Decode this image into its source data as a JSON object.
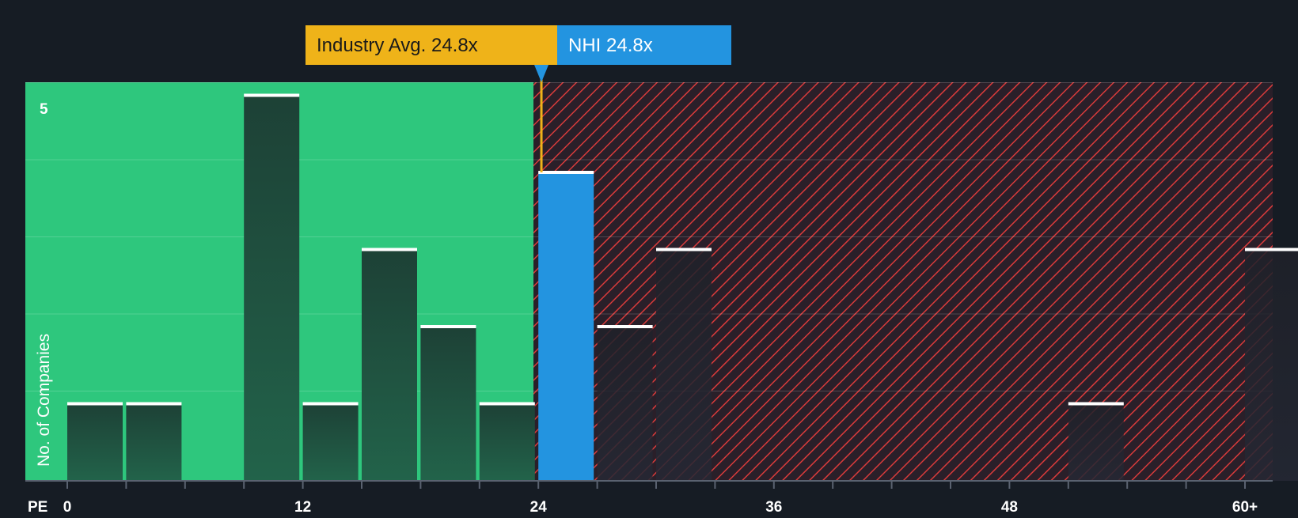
{
  "chart_data": {
    "type": "bar",
    "x_axis_label": "PE",
    "y_axis_label": "No. of Companies",
    "x_ticks": [
      "0",
      "12",
      "24",
      "36",
      "48",
      "60+"
    ],
    "y_ticks": [
      "5"
    ],
    "ylim": [
      0,
      5
    ],
    "bins": [
      {
        "x_start": 0,
        "x_end": 3,
        "count": 1
      },
      {
        "x_start": 3,
        "x_end": 6,
        "count": 1
      },
      {
        "x_start": 9,
        "x_end": 12,
        "count": 5
      },
      {
        "x_start": 12,
        "x_end": 15,
        "count": 1
      },
      {
        "x_start": 15,
        "x_end": 18,
        "count": 3
      },
      {
        "x_start": 18,
        "x_end": 21,
        "count": 2
      },
      {
        "x_start": 21,
        "x_end": 24,
        "count": 1
      },
      {
        "x_start": 24,
        "x_end": 27,
        "count": 4,
        "highlight": true
      },
      {
        "x_start": 27,
        "x_end": 30,
        "count": 2
      },
      {
        "x_start": 30,
        "x_end": 33,
        "count": 3
      },
      {
        "x_start": 51,
        "x_end": 54,
        "count": 1
      },
      {
        "x_start": 60,
        "x_end": 63,
        "count": 3
      }
    ],
    "industry_avg": {
      "label": "Industry Avg. 24.8x",
      "value": 24.8
    },
    "company": {
      "label": "NHI 24.8x",
      "value": 24.8
    },
    "colors": {
      "background": "#161c24",
      "undervalued_zone": "#2ec77d",
      "overvalued_zone": "#2a1f29",
      "overvalued_hatch": "#d93b3b",
      "bar_in_green": "#1e4a3a",
      "bar_in_red": "#2a2430",
      "highlight_bar": "#2394e0",
      "bar_cap": "#ffffff",
      "industry_label_bg": "#efb319",
      "company_label_bg": "#2394e0",
      "text": "#ffffff",
      "axis_text": "#ffffff"
    }
  }
}
